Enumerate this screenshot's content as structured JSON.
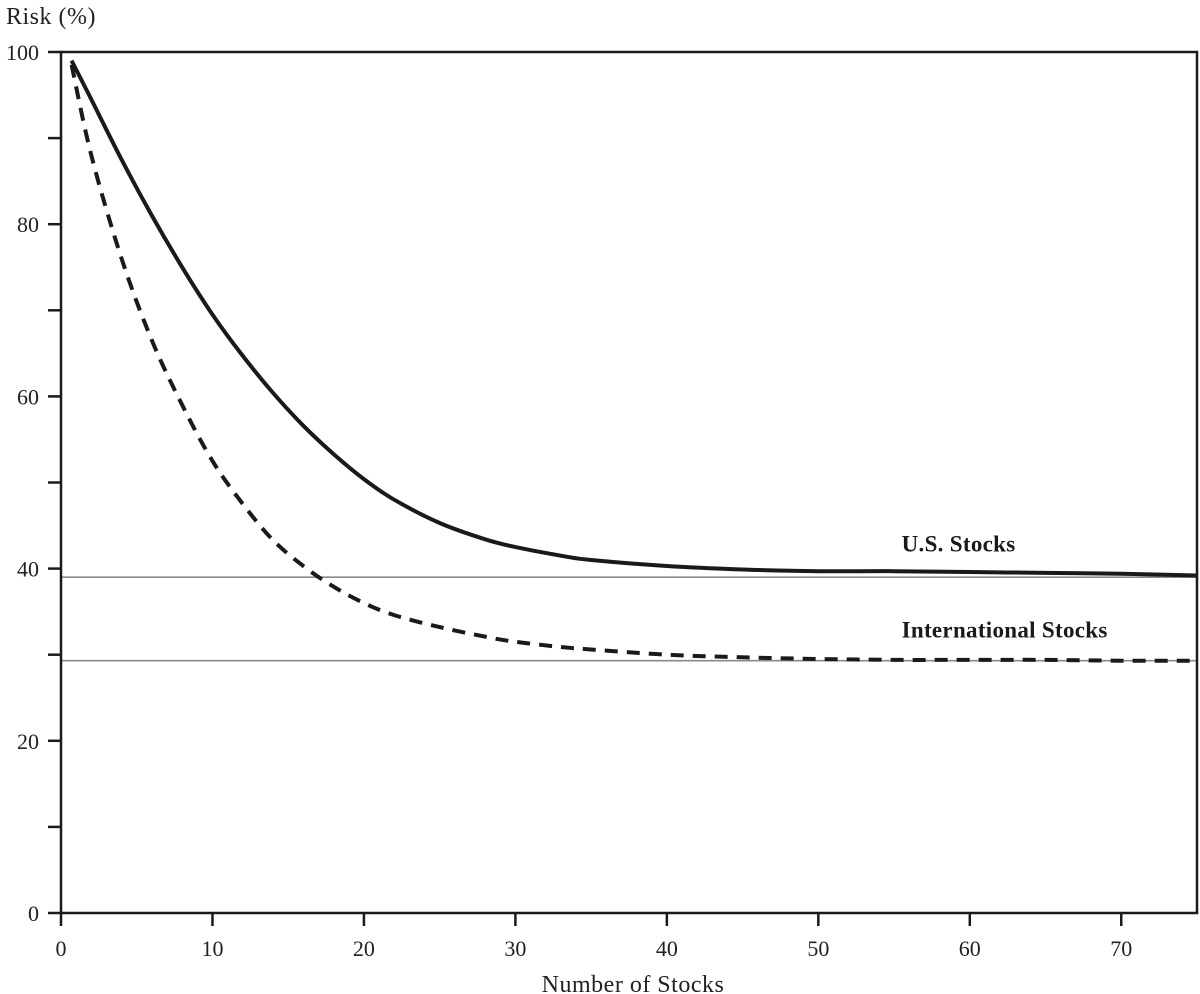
{
  "chart_data": {
    "type": "line",
    "title": "",
    "xlabel": "Number of Stocks",
    "ylabel": "Risk (%)",
    "xlim": [
      0,
      75
    ],
    "ylim": [
      0,
      100
    ],
    "x_ticks": [
      0,
      10,
      20,
      30,
      40,
      50,
      60,
      70
    ],
    "y_ticks_labeled": [
      0,
      20,
      40,
      60,
      80,
      100
    ],
    "y_ticks_minor": [
      10,
      30,
      50,
      70,
      90
    ],
    "grid": false,
    "legend": "none",
    "series": [
      {
        "name": "U.S. Stocks",
        "style": "solid",
        "color": "#1a1a1a",
        "x": [
          0.7,
          2,
          4,
          6,
          8,
          10,
          12,
          14,
          16,
          18,
          20,
          22,
          25,
          28,
          30,
          33,
          35,
          40,
          45,
          50,
          55,
          60,
          65,
          70,
          75
        ],
        "y": [
          99,
          94.5,
          87.5,
          81,
          75,
          69.5,
          64.7,
          60.4,
          56.6,
          53.3,
          50.4,
          48,
          45.3,
          43.4,
          42.5,
          41.5,
          41,
          40.3,
          39.9,
          39.7,
          39.7,
          39.6,
          39.5,
          39.4,
          39.2
        ]
      },
      {
        "name": "International Stocks",
        "style": "dashed",
        "color": "#1a1a1a",
        "x": [
          0.7,
          2,
          4,
          6,
          8,
          10,
          12,
          14,
          16,
          18,
          20,
          22,
          25,
          28,
          30,
          33,
          35,
          40,
          45,
          50,
          55,
          60,
          65,
          70,
          75
        ],
        "y": [
          98.5,
          88,
          76,
          66.5,
          59,
          52.5,
          47.5,
          43.3,
          40.3,
          37.9,
          36,
          34.6,
          33.2,
          32.1,
          31.5,
          30.9,
          30.6,
          30,
          29.7,
          29.5,
          29.4,
          29.4,
          29.4,
          29.3,
          29.3
        ]
      }
    ],
    "reference_lines": [
      {
        "y": 39,
        "color": "#8a8a8a"
      },
      {
        "y": 29.3,
        "color": "#8a8a8a"
      }
    ],
    "annotations": [
      {
        "text": "U.S. Stocks",
        "x": 55.5,
        "y": 42
      },
      {
        "text": "International Stocks",
        "x": 55.5,
        "y": 32
      }
    ]
  }
}
